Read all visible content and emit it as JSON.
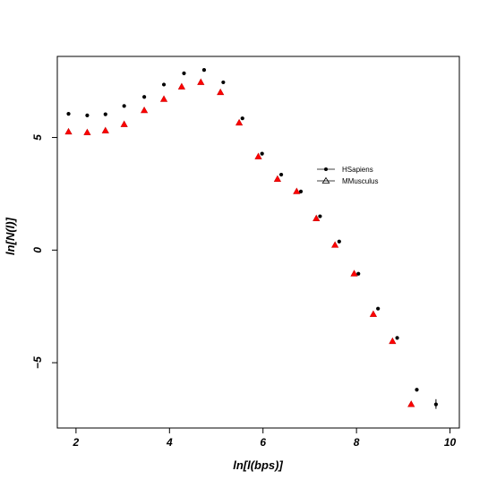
{
  "chart_data": {
    "type": "scatter",
    "title": "",
    "xlabel": "ln[l(bps)]",
    "ylabel": "ln[N(l)]",
    "xlim": [
      1.6,
      10.2
    ],
    "ylim": [
      -7.9,
      8.6
    ],
    "xticks": [
      2,
      4,
      6,
      8,
      10
    ],
    "yticks": [
      -5,
      0,
      5
    ],
    "grid": false,
    "legend_position": "center-right",
    "series": [
      {
        "name": "HSapiens",
        "marker": "filled-circle",
        "color": "#000000",
        "x": [
          1.84,
          2.24,
          2.63,
          3.03,
          3.46,
          3.88,
          4.31,
          4.74,
          5.15,
          5.56,
          5.98,
          6.39,
          6.81,
          7.22,
          7.63,
          8.04,
          8.46,
          8.87,
          9.29,
          9.7
        ],
        "y": [
          6.05,
          5.98,
          6.03,
          6.4,
          6.8,
          7.35,
          7.85,
          8.0,
          7.45,
          5.85,
          4.28,
          3.35,
          2.6,
          1.5,
          0.38,
          -1.05,
          -2.6,
          -3.9,
          -6.2,
          -6.85
        ]
      },
      {
        "name": "MMusculus",
        "marker": "open-triangle",
        "color": "#000000",
        "fill": "#ff0000",
        "x": [
          1.84,
          2.24,
          2.63,
          3.03,
          3.46,
          3.88,
          4.26,
          4.67,
          5.09,
          5.49,
          5.9,
          6.31,
          6.72,
          7.14,
          7.54,
          7.95,
          8.36,
          8.77,
          9.17
        ],
        "y": [
          5.25,
          5.22,
          5.3,
          5.58,
          6.2,
          6.7,
          7.25,
          7.45,
          7.0,
          5.65,
          4.15,
          3.15,
          2.6,
          1.4,
          0.22,
          -1.05,
          -2.85,
          -4.05,
          -6.85
        ]
      }
    ],
    "error_bars": [
      {
        "series": "HSapiens",
        "x": 9.7,
        "y": -6.85,
        "low": -7.05,
        "high": -6.62
      }
    ]
  }
}
